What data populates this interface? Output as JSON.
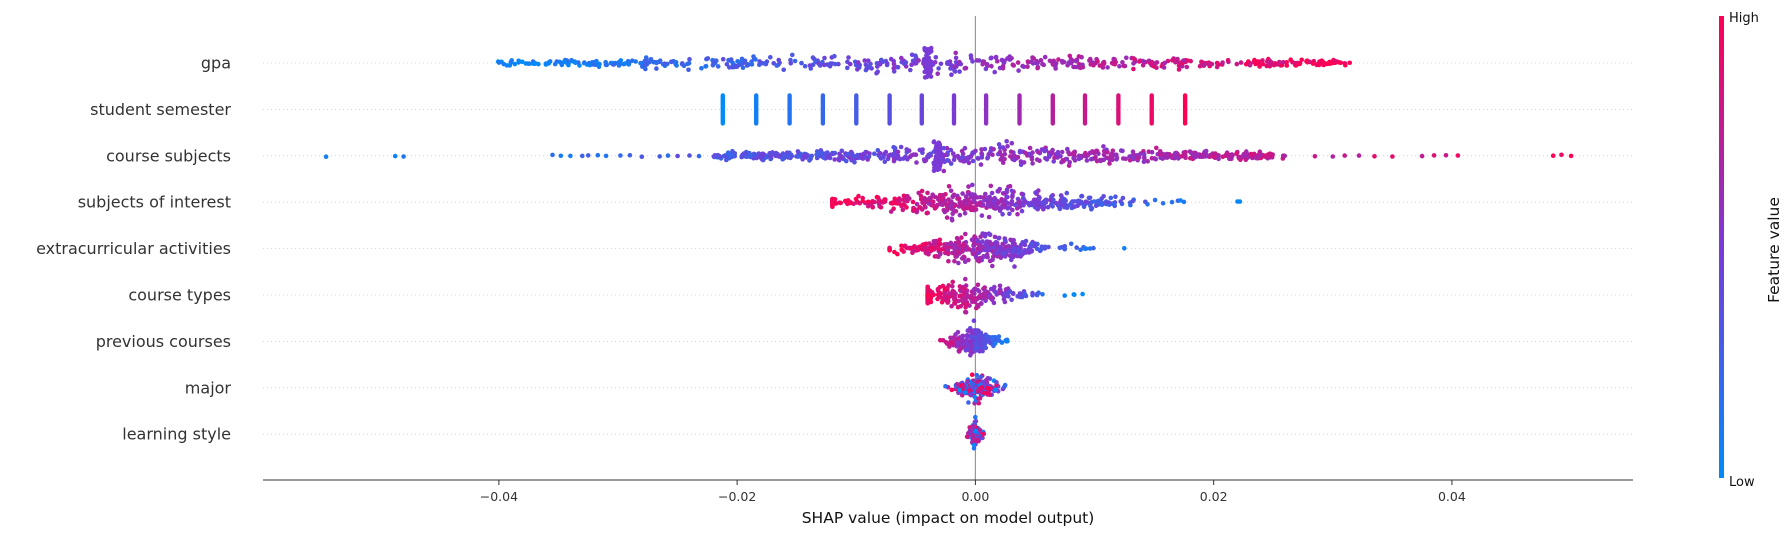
{
  "chart_data": {
    "type": "scatter",
    "subtype": "shap-beeswarm-summary",
    "title": "",
    "xlabel": "SHAP value (impact on model output)",
    "ylabel": "",
    "xlim": [
      -0.0598,
      0.0552
    ],
    "xticks": [
      "−0.04",
      "−0.02",
      "0.00",
      "0.02",
      "0.04"
    ],
    "xtick_values": [
      -0.04,
      -0.02,
      0.0,
      0.02,
      0.04
    ],
    "zero_line": true,
    "grid": false,
    "colorbar": {
      "title": "Feature value",
      "high_label": "High",
      "low_label": "Low",
      "low_color": "#008bfb",
      "high_color": "#ff0052"
    },
    "features": [
      {
        "name": "gpa",
        "kind": "continuous",
        "min": -0.0402,
        "max": 0.0318,
        "direction": "positive",
        "spike": -0.004,
        "spread": 0.35,
        "count": 560
      },
      {
        "name": "student semester",
        "kind": "discrete",
        "levels": [
          -0.0212,
          -0.0184,
          -0.0156,
          -0.0128,
          -0.01,
          -0.0072,
          -0.0045,
          -0.0018,
          0.0009,
          0.0037,
          0.0065,
          0.0092,
          0.012,
          0.0148,
          0.0176
        ],
        "direction": "positive"
      },
      {
        "name": "course subjects",
        "kind": "continuous",
        "min": -0.0545,
        "max": 0.05,
        "direction": "positive",
        "core_min": -0.022,
        "core_max": 0.026,
        "spike": -0.0032,
        "outliers": [
          -0.0545,
          -0.0487,
          -0.048,
          -0.0355,
          -0.0348,
          -0.034,
          -0.033,
          -0.0325,
          -0.0317,
          -0.031,
          -0.0298,
          -0.029,
          -0.028,
          -0.0265,
          -0.0258,
          -0.025,
          -0.024,
          -0.0232,
          0.0285,
          0.03,
          0.031,
          0.0322,
          0.0335,
          0.035,
          0.0375,
          0.0385,
          0.0395,
          0.0405,
          0.0485,
          0.0492,
          0.05
        ],
        "count": 620
      },
      {
        "name": "subjects of interest",
        "kind": "cluster",
        "min": -0.012,
        "max": 0.0222,
        "direction": "negative",
        "center": 0.0005,
        "outliers": [
          -0.012,
          -0.0113,
          -0.0105,
          -0.0097,
          -0.009,
          0.0112,
          0.0122,
          0.0165,
          0.0175,
          0.022,
          0.0222
        ],
        "count": 460
      },
      {
        "name": "extracurricular activities",
        "kind": "cluster",
        "min": -0.0072,
        "max": 0.0125,
        "direction": "negative",
        "center": 0.0003,
        "outliers": [
          0.0075,
          0.0085,
          0.0092,
          0.0125
        ],
        "count": 340
      },
      {
        "name": "course types",
        "kind": "cluster",
        "min": -0.004,
        "max": 0.009,
        "direction": "negative",
        "center": -0.001,
        "outliers": [
          0.0075,
          0.0083,
          0.009
        ],
        "count": 240
      },
      {
        "name": "previous courses",
        "kind": "cluster",
        "min": -0.004,
        "max": 0.0032,
        "direction": "negative",
        "center": -0.0002,
        "count": 240
      },
      {
        "name": "major",
        "kind": "cluster",
        "min": -0.0033,
        "max": 0.0025,
        "direction": "mixed",
        "center": 0.0001,
        "count": 170
      },
      {
        "name": "learning style",
        "kind": "cluster",
        "min": -0.0007,
        "max": 0.0009,
        "direction": "mixed",
        "center": 0.0,
        "count": 110
      }
    ]
  }
}
